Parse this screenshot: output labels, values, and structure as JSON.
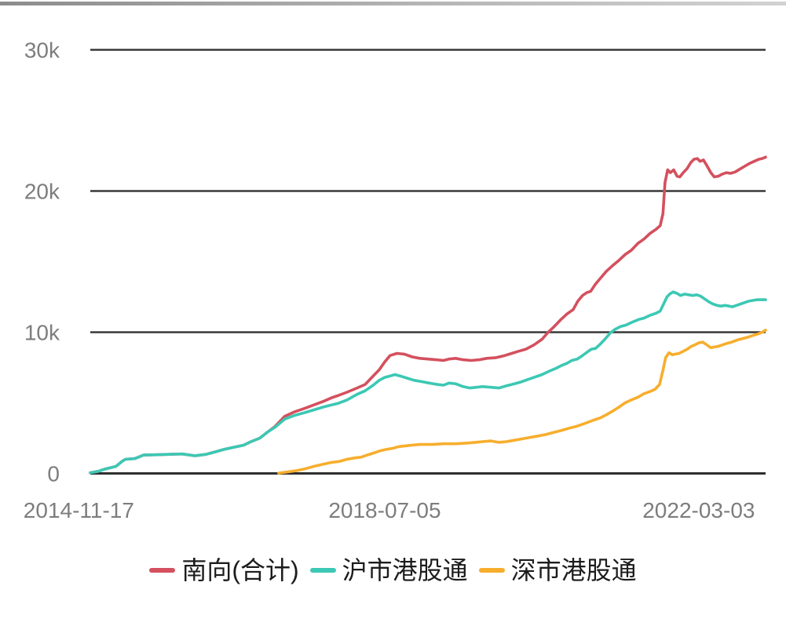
{
  "chart_data": {
    "type": "line",
    "title": "",
    "legend_position": "bottom",
    "grid": true,
    "gridline_color": "#383838",
    "axis_line_color": "#2e2e2e",
    "axis_label_color": "#7d7d7d",
    "x_axis": {
      "tick_labels": [
        "2014-11-17",
        "2018-07-05",
        "2022-03-03"
      ],
      "tick_positions": [
        -0.017,
        0.436,
        0.901
      ]
    },
    "y_axis": {
      "tick_labels": [
        "0",
        "10k",
        "20k",
        "30k"
      ],
      "tick_values": [
        0,
        10000,
        20000,
        30000
      ],
      "ylim": [
        0,
        30000
      ]
    },
    "series": [
      {
        "id": "southbound-total",
        "name": "南向(合计)",
        "color": "#d4505e",
        "points": [
          [
            0.0,
            50
          ],
          [
            0.012,
            150
          ],
          [
            0.021,
            300
          ],
          [
            0.038,
            500
          ],
          [
            0.047,
            850
          ],
          [
            0.052,
            1000
          ],
          [
            0.066,
            1050
          ],
          [
            0.079,
            1300
          ],
          [
            0.099,
            1320
          ],
          [
            0.116,
            1350
          ],
          [
            0.136,
            1380
          ],
          [
            0.155,
            1250
          ],
          [
            0.171,
            1350
          ],
          [
            0.183,
            1500
          ],
          [
            0.198,
            1700
          ],
          [
            0.212,
            1850
          ],
          [
            0.227,
            2000
          ],
          [
            0.238,
            2250
          ],
          [
            0.251,
            2500
          ],
          [
            0.263,
            2950
          ],
          [
            0.273,
            3300
          ],
          [
            0.288,
            4050
          ],
          [
            0.302,
            4350
          ],
          [
            0.317,
            4600
          ],
          [
            0.331,
            4850
          ],
          [
            0.345,
            5100
          ],
          [
            0.357,
            5350
          ],
          [
            0.366,
            5500
          ],
          [
            0.38,
            5750
          ],
          [
            0.395,
            6050
          ],
          [
            0.407,
            6300
          ],
          [
            0.419,
            6900
          ],
          [
            0.428,
            7350
          ],
          [
            0.436,
            7900
          ],
          [
            0.444,
            8350
          ],
          [
            0.454,
            8500
          ],
          [
            0.465,
            8450
          ],
          [
            0.477,
            8250
          ],
          [
            0.488,
            8150
          ],
          [
            0.5,
            8100
          ],
          [
            0.512,
            8050
          ],
          [
            0.523,
            8000
          ],
          [
            0.531,
            8100
          ],
          [
            0.541,
            8150
          ],
          [
            0.552,
            8050
          ],
          [
            0.564,
            8000
          ],
          [
            0.576,
            8050
          ],
          [
            0.587,
            8150
          ],
          [
            0.601,
            8200
          ],
          [
            0.614,
            8350
          ],
          [
            0.624,
            8500
          ],
          [
            0.634,
            8650
          ],
          [
            0.645,
            8800
          ],
          [
            0.657,
            9100
          ],
          [
            0.669,
            9500
          ],
          [
            0.678,
            10000
          ],
          [
            0.687,
            10400
          ],
          [
            0.697,
            10900
          ],
          [
            0.706,
            11300
          ],
          [
            0.715,
            11600
          ],
          [
            0.722,
            12200
          ],
          [
            0.729,
            12600
          ],
          [
            0.735,
            12800
          ],
          [
            0.741,
            12900
          ],
          [
            0.748,
            13400
          ],
          [
            0.755,
            13800
          ],
          [
            0.764,
            14300
          ],
          [
            0.773,
            14700
          ],
          [
            0.783,
            15100
          ],
          [
            0.792,
            15500
          ],
          [
            0.801,
            15800
          ],
          [
            0.811,
            16300
          ],
          [
            0.82,
            16600
          ],
          [
            0.829,
            17000
          ],
          [
            0.838,
            17300
          ],
          [
            0.844,
            17550
          ],
          [
            0.848,
            18400
          ],
          [
            0.851,
            20600
          ],
          [
            0.855,
            21500
          ],
          [
            0.859,
            21300
          ],
          [
            0.864,
            21500
          ],
          [
            0.869,
            21050
          ],
          [
            0.873,
            21000
          ],
          [
            0.878,
            21300
          ],
          [
            0.884,
            21600
          ],
          [
            0.889,
            22000
          ],
          [
            0.894,
            22250
          ],
          [
            0.899,
            22300
          ],
          [
            0.903,
            22100
          ],
          [
            0.908,
            22200
          ],
          [
            0.913,
            21800
          ],
          [
            0.919,
            21300
          ],
          [
            0.924,
            21000
          ],
          [
            0.93,
            21050
          ],
          [
            0.936,
            21200
          ],
          [
            0.942,
            21300
          ],
          [
            0.948,
            21250
          ],
          [
            0.955,
            21350
          ],
          [
            0.962,
            21550
          ],
          [
            0.969,
            21750
          ],
          [
            0.976,
            21950
          ],
          [
            0.983,
            22100
          ],
          [
            0.99,
            22250
          ],
          [
            0.995,
            22300
          ],
          [
            1.0,
            22400
          ]
        ]
      },
      {
        "id": "sh-hk-connect",
        "name": "沪市港股通",
        "color": "#3cc8b4",
        "points": [
          [
            0.0,
            50
          ],
          [
            0.012,
            150
          ],
          [
            0.021,
            300
          ],
          [
            0.038,
            500
          ],
          [
            0.047,
            850
          ],
          [
            0.052,
            1000
          ],
          [
            0.066,
            1050
          ],
          [
            0.079,
            1300
          ],
          [
            0.099,
            1320
          ],
          [
            0.116,
            1350
          ],
          [
            0.136,
            1380
          ],
          [
            0.155,
            1250
          ],
          [
            0.171,
            1350
          ],
          [
            0.183,
            1500
          ],
          [
            0.198,
            1700
          ],
          [
            0.212,
            1850
          ],
          [
            0.227,
            2000
          ],
          [
            0.238,
            2250
          ],
          [
            0.251,
            2500
          ],
          [
            0.263,
            2950
          ],
          [
            0.273,
            3250
          ],
          [
            0.288,
            3850
          ],
          [
            0.302,
            4100
          ],
          [
            0.317,
            4300
          ],
          [
            0.331,
            4500
          ],
          [
            0.345,
            4700
          ],
          [
            0.357,
            4850
          ],
          [
            0.366,
            4950
          ],
          [
            0.38,
            5200
          ],
          [
            0.395,
            5600
          ],
          [
            0.407,
            5850
          ],
          [
            0.419,
            6250
          ],
          [
            0.428,
            6600
          ],
          [
            0.436,
            6800
          ],
          [
            0.444,
            6900
          ],
          [
            0.451,
            7000
          ],
          [
            0.459,
            6900
          ],
          [
            0.469,
            6750
          ],
          [
            0.479,
            6600
          ],
          [
            0.491,
            6500
          ],
          [
            0.502,
            6400
          ],
          [
            0.514,
            6300
          ],
          [
            0.523,
            6250
          ],
          [
            0.531,
            6400
          ],
          [
            0.541,
            6350
          ],
          [
            0.552,
            6150
          ],
          [
            0.562,
            6050
          ],
          [
            0.572,
            6100
          ],
          [
            0.581,
            6150
          ],
          [
            0.593,
            6100
          ],
          [
            0.605,
            6050
          ],
          [
            0.616,
            6200
          ],
          [
            0.628,
            6350
          ],
          [
            0.636,
            6450
          ],
          [
            0.645,
            6600
          ],
          [
            0.657,
            6800
          ],
          [
            0.669,
            7000
          ],
          [
            0.68,
            7250
          ],
          [
            0.69,
            7450
          ],
          [
            0.698,
            7650
          ],
          [
            0.706,
            7800
          ],
          [
            0.713,
            8000
          ],
          [
            0.721,
            8100
          ],
          [
            0.729,
            8350
          ],
          [
            0.736,
            8600
          ],
          [
            0.742,
            8800
          ],
          [
            0.748,
            8850
          ],
          [
            0.754,
            9100
          ],
          [
            0.762,
            9500
          ],
          [
            0.77,
            9950
          ],
          [
            0.777,
            10200
          ],
          [
            0.785,
            10400
          ],
          [
            0.793,
            10500
          ],
          [
            0.802,
            10700
          ],
          [
            0.812,
            10900
          ],
          [
            0.82,
            11000
          ],
          [
            0.829,
            11200
          ],
          [
            0.838,
            11350
          ],
          [
            0.844,
            11500
          ],
          [
            0.849,
            12000
          ],
          [
            0.854,
            12500
          ],
          [
            0.858,
            12700
          ],
          [
            0.863,
            12850
          ],
          [
            0.869,
            12750
          ],
          [
            0.874,
            12600
          ],
          [
            0.88,
            12700
          ],
          [
            0.886,
            12650
          ],
          [
            0.892,
            12600
          ],
          [
            0.898,
            12650
          ],
          [
            0.904,
            12550
          ],
          [
            0.91,
            12350
          ],
          [
            0.916,
            12150
          ],
          [
            0.922,
            12000
          ],
          [
            0.928,
            11900
          ],
          [
            0.934,
            11850
          ],
          [
            0.94,
            11900
          ],
          [
            0.946,
            11850
          ],
          [
            0.951,
            11800
          ],
          [
            0.957,
            11900
          ],
          [
            0.963,
            12000
          ],
          [
            0.969,
            12100
          ],
          [
            0.975,
            12200
          ],
          [
            0.981,
            12250
          ],
          [
            0.987,
            12300
          ],
          [
            0.993,
            12300
          ],
          [
            1.0,
            12300
          ]
        ]
      },
      {
        "id": "sz-hk-connect",
        "name": "深市港股通",
        "color": "#f7ae2d",
        "points": [
          [
            0.279,
            20
          ],
          [
            0.291,
            100
          ],
          [
            0.306,
            200
          ],
          [
            0.32,
            350
          ],
          [
            0.331,
            500
          ],
          [
            0.345,
            650
          ],
          [
            0.357,
            780
          ],
          [
            0.369,
            850
          ],
          [
            0.38,
            1000
          ],
          [
            0.392,
            1100
          ],
          [
            0.401,
            1150
          ],
          [
            0.41,
            1300
          ],
          [
            0.42,
            1450
          ],
          [
            0.429,
            1600
          ],
          [
            0.438,
            1700
          ],
          [
            0.448,
            1780
          ],
          [
            0.457,
            1900
          ],
          [
            0.466,
            1950
          ],
          [
            0.476,
            2000
          ],
          [
            0.488,
            2050
          ],
          [
            0.506,
            2050
          ],
          [
            0.523,
            2100
          ],
          [
            0.541,
            2100
          ],
          [
            0.558,
            2150
          ],
          [
            0.57,
            2200
          ],
          [
            0.581,
            2250
          ],
          [
            0.593,
            2300
          ],
          [
            0.605,
            2200
          ],
          [
            0.616,
            2250
          ],
          [
            0.628,
            2350
          ],
          [
            0.64,
            2450
          ],
          [
            0.651,
            2550
          ],
          [
            0.663,
            2650
          ],
          [
            0.674,
            2750
          ],
          [
            0.686,
            2900
          ],
          [
            0.698,
            3050
          ],
          [
            0.709,
            3200
          ],
          [
            0.721,
            3350
          ],
          [
            0.733,
            3550
          ],
          [
            0.744,
            3750
          ],
          [
            0.756,
            3950
          ],
          [
            0.764,
            4150
          ],
          [
            0.773,
            4400
          ],
          [
            0.783,
            4700
          ],
          [
            0.792,
            5000
          ],
          [
            0.801,
            5200
          ],
          [
            0.811,
            5400
          ],
          [
            0.82,
            5650
          ],
          [
            0.829,
            5800
          ],
          [
            0.836,
            5950
          ],
          [
            0.843,
            6300
          ],
          [
            0.848,
            7300
          ],
          [
            0.852,
            8200
          ],
          [
            0.857,
            8550
          ],
          [
            0.862,
            8400
          ],
          [
            0.866,
            8450
          ],
          [
            0.872,
            8500
          ],
          [
            0.878,
            8650
          ],
          [
            0.884,
            8800
          ],
          [
            0.89,
            9000
          ],
          [
            0.895,
            9100
          ],
          [
            0.901,
            9250
          ],
          [
            0.907,
            9300
          ],
          [
            0.913,
            9100
          ],
          [
            0.919,
            8900
          ],
          [
            0.924,
            8950
          ],
          [
            0.93,
            9000
          ],
          [
            0.936,
            9100
          ],
          [
            0.942,
            9200
          ],
          [
            0.95,
            9300
          ],
          [
            0.958,
            9450
          ],
          [
            0.966,
            9550
          ],
          [
            0.974,
            9650
          ],
          [
            0.983,
            9800
          ],
          [
            0.99,
            9900
          ],
          [
            0.995,
            10000
          ],
          [
            1.0,
            10150
          ]
        ]
      }
    ]
  }
}
